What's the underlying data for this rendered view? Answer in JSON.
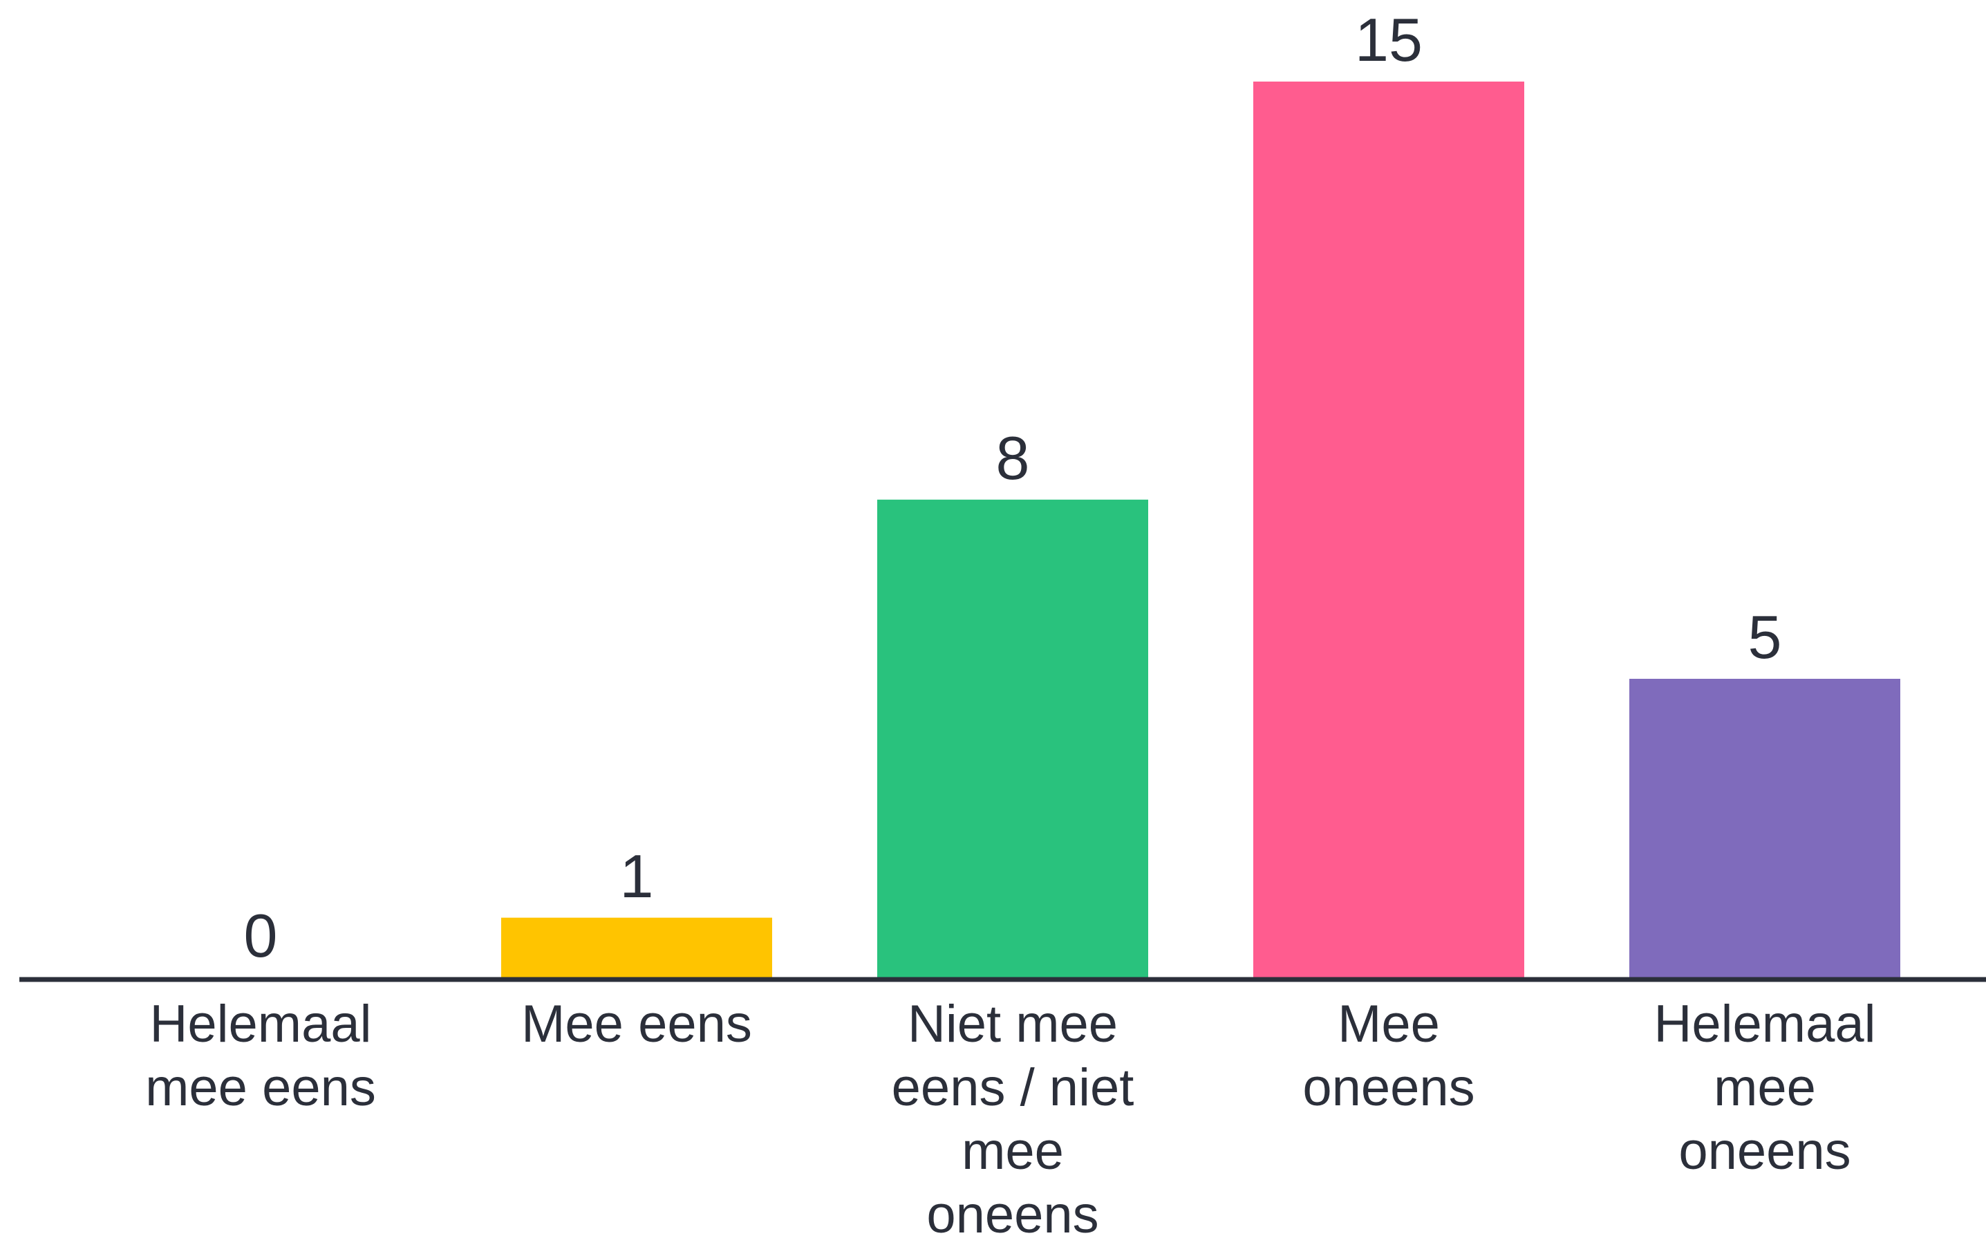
{
  "chart_data": {
    "type": "bar",
    "categories": [
      "Helemaal mee eens",
      "Mee eens",
      "Niet mee eens / niet mee oneens",
      "Mee oneens",
      "Helemaal mee oneens"
    ],
    "values": [
      0,
      1,
      8,
      15,
      5
    ],
    "colors": [
      "#FFC400",
      "#FFC400",
      "#29C27D",
      "#FF5C8F",
      "#7F6BBC"
    ],
    "title": "",
    "xlabel": "",
    "ylabel": "",
    "ylim": [
      0,
      15
    ],
    "grid": false,
    "legend": "none",
    "axis_color": "#2B2F3A"
  }
}
